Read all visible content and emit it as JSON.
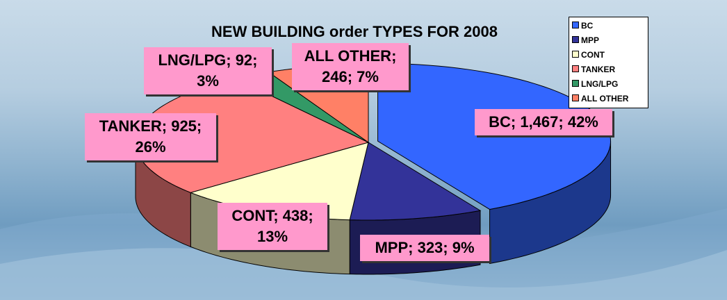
{
  "chart_data": {
    "type": "pie3d",
    "title": "NEW BUILDING order TYPES FOR 2008",
    "categories": [
      "BC",
      "MPP",
      "CONT",
      "TANKER",
      "LNG/LPG",
      "ALL OTHER"
    ],
    "values": [
      1467,
      323,
      438,
      925,
      92,
      246
    ],
    "value_labels": [
      "BC; 1,467; 42%",
      "MPP; 323; 9%",
      "CONT; 438; 13%",
      "TANKER; 925; 26%",
      "LNG/LPG; 92; 3%",
      "ALL OTHER; 246; 7%"
    ],
    "colors": [
      "#3366ff",
      "#333399",
      "#ffffcc",
      "#ff8080",
      "#339966",
      "#ff8066"
    ],
    "legend": "top-right"
  }
}
